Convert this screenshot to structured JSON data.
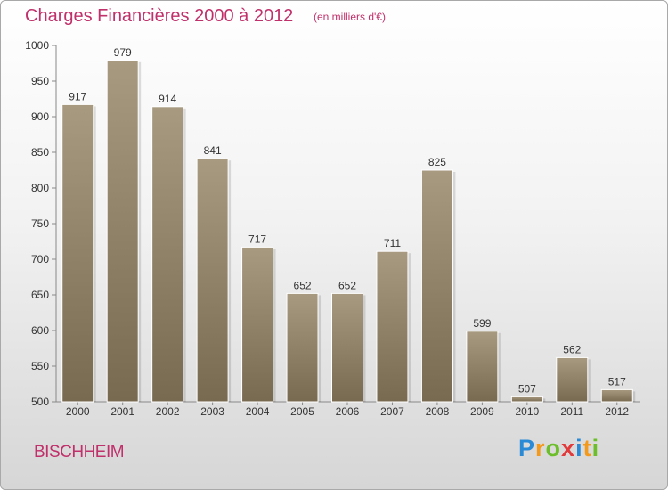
{
  "title": "Charges Financières 2000 à 2012",
  "subtitle": "(en milliers d'€)",
  "city": "BISCHHEIM",
  "logo": {
    "letters": [
      "P",
      "r",
      "o",
      "x",
      "i",
      "t",
      "i"
    ],
    "colors": [
      "#2b8ad6",
      "#f39a1d",
      "#6cbf2a",
      "#e23a3a",
      "#2b8ad6",
      "#f39a1d",
      "#6cbf2a"
    ]
  },
  "colors": {
    "accent": "#c0306a",
    "bar_top": "#a89a80",
    "bar_bottom": "#786a50"
  },
  "chart_data": {
    "type": "bar",
    "title": "Charges Financières 2000 à 2012",
    "subtitle": "(en milliers d'€)",
    "categories": [
      "2000",
      "2001",
      "2002",
      "2003",
      "2004",
      "2005",
      "2006",
      "2007",
      "2008",
      "2009",
      "2010",
      "2011",
      "2012"
    ],
    "values": [
      917,
      979,
      914,
      841,
      717,
      652,
      652,
      711,
      825,
      599,
      507,
      562,
      517
    ],
    "ylim": [
      500,
      1000
    ],
    "yticks": [
      500,
      550,
      600,
      650,
      700,
      750,
      800,
      850,
      900,
      950,
      1000
    ],
    "grid": false,
    "legend": "none"
  }
}
